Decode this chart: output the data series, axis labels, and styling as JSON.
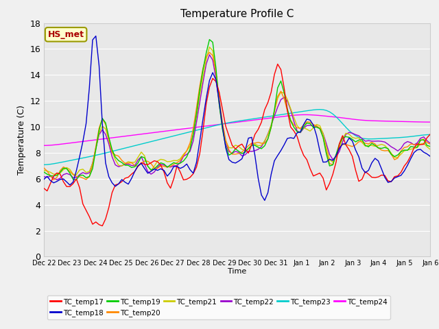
{
  "title": "Temperature Profile C",
  "xlabel": "Time",
  "ylabel": "Temperature (C)",
  "ylim": [
    0,
    18
  ],
  "fig_facecolor": "#f0f0f0",
  "axes_facecolor": "#e8e8e8",
  "grid_color": "#ffffff",
  "series_colors": {
    "TC_temp17": "#ff0000",
    "TC_temp18": "#0000cc",
    "TC_temp19": "#00cc00",
    "TC_temp20": "#ff8800",
    "TC_temp21": "#cccc00",
    "TC_temp22": "#9900cc",
    "TC_temp23": "#00cccc",
    "TC_temp24": "#ff00ff"
  },
  "legend_order": [
    "TC_temp17",
    "TC_temp18",
    "TC_temp19",
    "TC_temp20",
    "TC_temp21",
    "TC_temp22",
    "TC_temp23",
    "TC_temp24"
  ],
  "x_tick_labels": [
    "Dec 22",
    "Dec 23",
    "Dec 24",
    "Dec 25",
    "Dec 26",
    "Dec 27",
    "Dec 28",
    "Dec 29",
    "Dec 30",
    "Dec 31",
    "Jan 1",
    "Jan 2",
    "Jan 3",
    "Jan 4",
    "Jan 5",
    "Jan 6"
  ],
  "hs_met_box": {
    "text": "HS_met",
    "facecolor": "#ffffcc",
    "edgecolor": "#999900",
    "textcolor": "#aa0000",
    "fontsize": 9
  }
}
